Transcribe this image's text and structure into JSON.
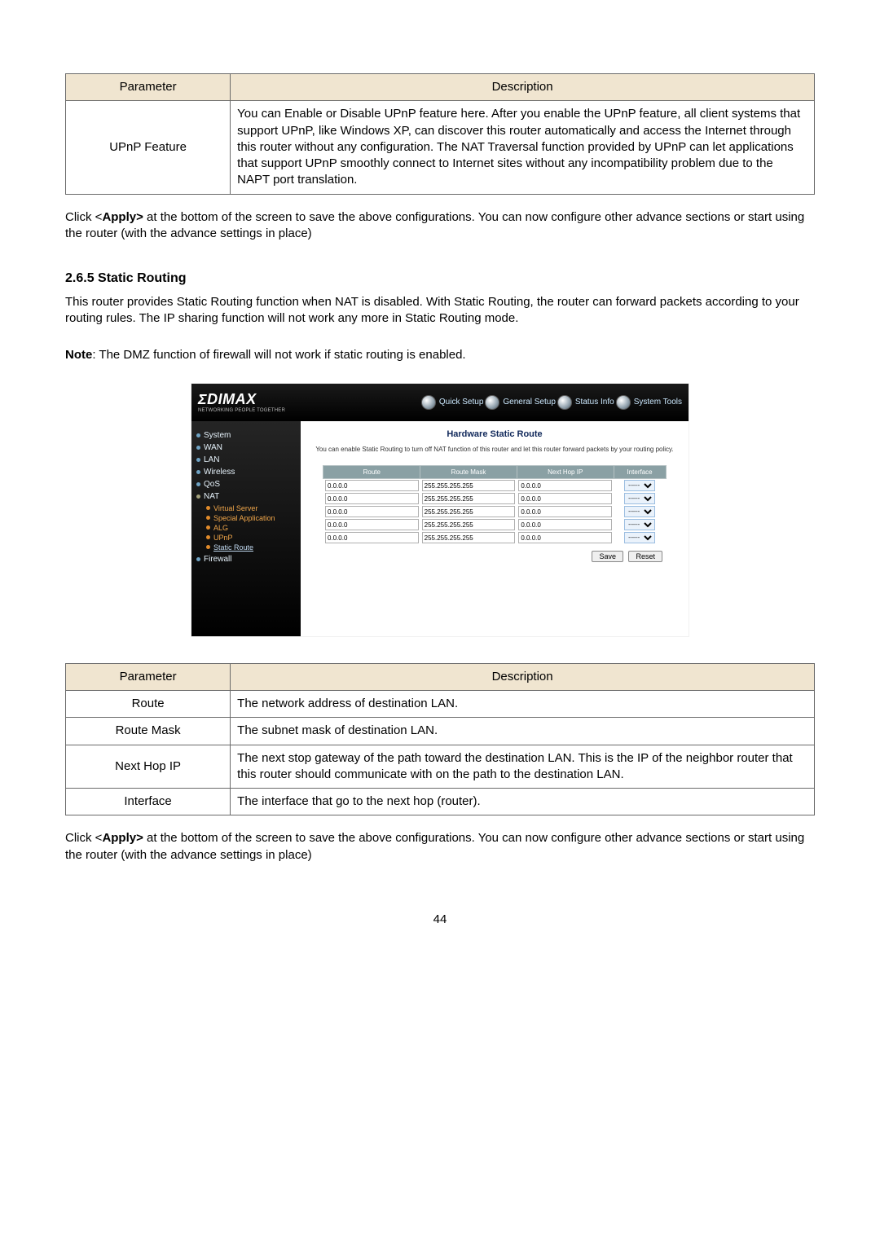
{
  "table1": {
    "headers": [
      "Parameter",
      "Description"
    ],
    "rows": [
      {
        "param": "UPnP Feature",
        "desc": "You can Enable or Disable UPnP feature here. After you enable the UPnP feature, all client systems that support UPnP, like Windows XP, can discover this router automatically and access the Internet through this router without any configuration. The NAT Traversal function provided by UPnP can let applications that support UPnP smoothly connect to Internet sites without any incompatibility problem due to the NAPT port translation."
      }
    ],
    "header_bg": "#f0e5d0"
  },
  "apply_para_prefix": "Click <",
  "apply_bold": "Apply>",
  "apply_para_suffix": " at the bottom of the screen to save the above configurations. You can now configure other advance sections or start using the router (with the advance settings in place)",
  "section": {
    "number": "2.6.5",
    "title": "Static Routing"
  },
  "section_text": "This router provides Static Routing function when NAT is disabled. With Static Routing, the router can forward packets according to your routing rules. The IP sharing function will not work any more in Static Routing mode.",
  "note_label": "Note",
  "note_text": ": The DMZ function of firewall will not work if static routing is enabled.",
  "router_shot": {
    "logo_main": "ΣDIMAX",
    "logo_sub": "NETWORKING PEOPLE TOGETHER",
    "tabs": [
      "Quick Setup",
      "General Setup",
      "Status Info",
      "System Tools"
    ],
    "sidebar": {
      "top": [
        "System",
        "WAN",
        "LAN",
        "Wireless",
        "QoS"
      ],
      "nat_label": "NAT",
      "nat_subs": [
        "Virtual Server",
        "Special Application",
        "ALG",
        "UPnP",
        "Static Route"
      ],
      "firewall_label": "Firewall"
    },
    "panel": {
      "title": "Hardware Static Route",
      "desc": "You can enable Static Routing to turn off NAT function of this router and let this router forward packets by your routing policy.",
      "columns": [
        "Route",
        "Route Mask",
        "Next Hop IP",
        "Interface"
      ],
      "rows": [
        {
          "route": "0.0.0.0",
          "mask": "255.255.255.255",
          "nexthop": "0.0.0.0",
          "iface": "------"
        },
        {
          "route": "0.0.0.0",
          "mask": "255.255.255.255",
          "nexthop": "0.0.0.0",
          "iface": "------"
        },
        {
          "route": "0.0.0.0",
          "mask": "255.255.255.255",
          "nexthop": "0.0.0.0",
          "iface": "------"
        },
        {
          "route": "0.0.0.0",
          "mask": "255.255.255.255",
          "nexthop": "0.0.0.0",
          "iface": "------"
        },
        {
          "route": "0.0.0.0",
          "mask": "255.255.255.255",
          "nexthop": "0.0.0.0",
          "iface": "------"
        }
      ],
      "buttons": [
        "Save",
        "Reset"
      ]
    },
    "sidebar_bg": "#000000",
    "header_bg": "#8aa0a4"
  },
  "table2": {
    "headers": [
      "Parameter",
      "Description"
    ],
    "rows": [
      {
        "param": "Route",
        "desc": "The network address of destination LAN."
      },
      {
        "param": "Route Mask",
        "desc": "The subnet mask of destination LAN."
      },
      {
        "param": "Next Hop IP",
        "desc": "The next stop gateway of the path toward the destination LAN. This is the IP of the neighbor router that this router should communicate with on the path to the destination LAN."
      },
      {
        "param": "Interface",
        "desc": "The interface that go to the next hop (router)."
      }
    ],
    "header_bg": "#f0e5d0"
  },
  "page_number": "44"
}
